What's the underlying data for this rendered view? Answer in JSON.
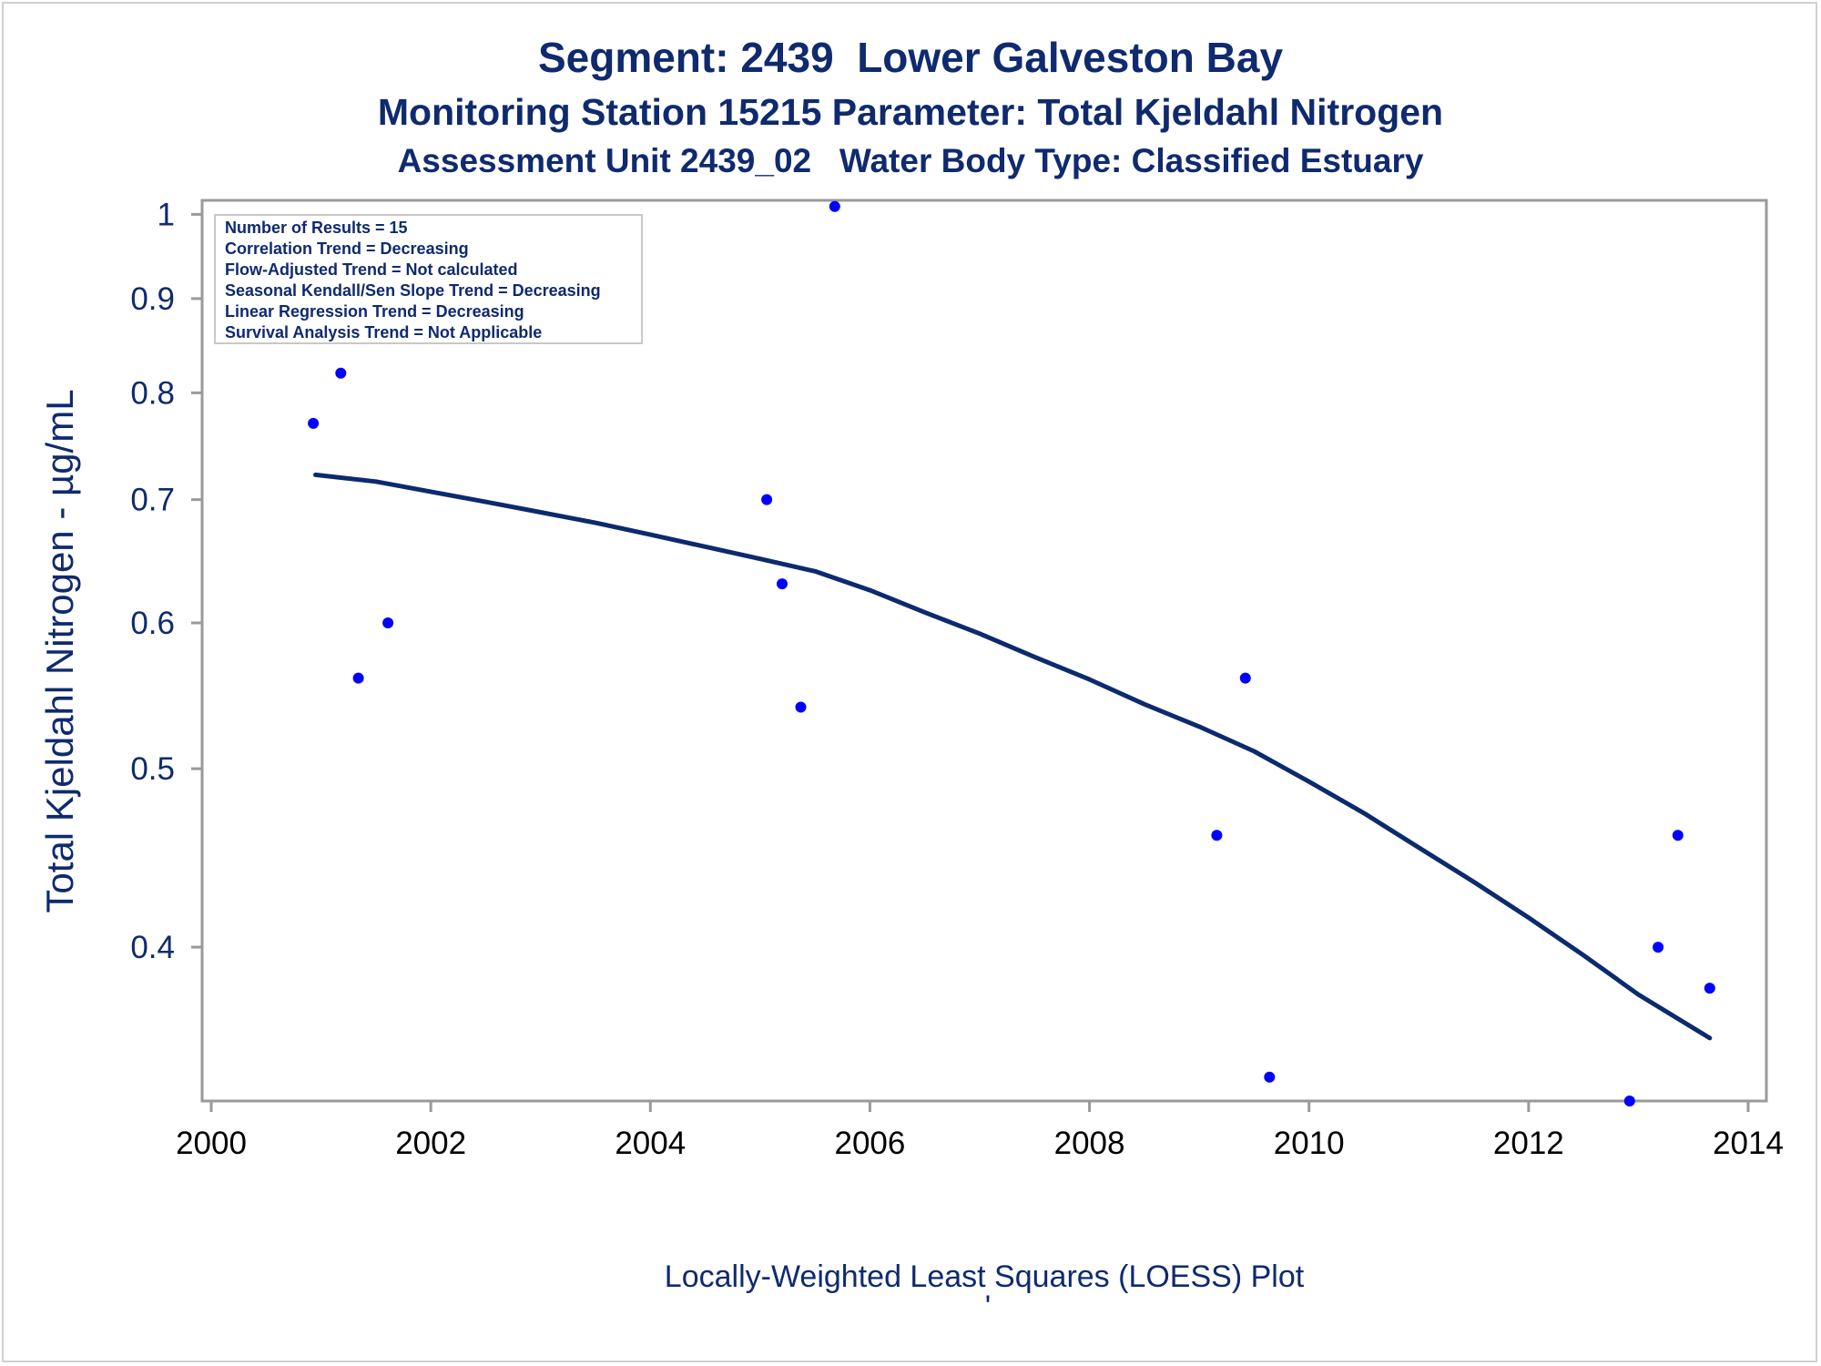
{
  "chart_data": {
    "type": "scatter",
    "title": "Segment: 2439  Lower Galveston Bay",
    "subtitle_lines": [
      "Monitoring Station 15215 Parameter: Total Kjeldahl Nitrogen",
      "Assessment Unit 2439_02   Water Body Type: Classified Estuary"
    ],
    "ylabel": "Total Kjeldahl Nitrogen -  µg/mL",
    "footnote": "Locally-Weighted Least Squares (LOESS) Plot",
    "footnote_mark": "'",
    "y_scale": "log",
    "xlim": [
      2000,
      2014
    ],
    "ylim": [
      0.33,
      1.02
    ],
    "x_ticks": [
      2000,
      2002,
      2004,
      2006,
      2008,
      2010,
      2012,
      2014
    ],
    "y_ticks": [
      0.4,
      0.5,
      0.6,
      0.7,
      0.8,
      0.9,
      1
    ],
    "y_tick_labels": [
      "0.4",
      "0.5",
      "0.6",
      "0.7",
      "0.8",
      "0.9",
      "1"
    ],
    "grid": false,
    "legend_position": "top-left",
    "stats_box": [
      "Number of Results = 15",
      "Correlation Trend = Decreasing",
      "Flow-Adjusted Trend = Not calculated",
      "Seasonal Kendall/Sen Slope Trend = Decreasing",
      "Linear Regression Trend = Decreasing",
      "Survival Analysis Trend = Not Applicable"
    ],
    "points": [
      {
        "x": 2000.93,
        "y": 0.77
      },
      {
        "x": 2001.18,
        "y": 0.82
      },
      {
        "x": 2001.34,
        "y": 0.56
      },
      {
        "x": 2001.61,
        "y": 0.6
      },
      {
        "x": 2005.06,
        "y": 0.7
      },
      {
        "x": 2005.2,
        "y": 0.63
      },
      {
        "x": 2005.37,
        "y": 0.54
      },
      {
        "x": 2005.68,
        "y": 1.01
      },
      {
        "x": 2009.16,
        "y": 0.46
      },
      {
        "x": 2009.42,
        "y": 0.56
      },
      {
        "x": 2009.64,
        "y": 0.34
      },
      {
        "x": 2012.92,
        "y": 0.33
      },
      {
        "x": 2013.18,
        "y": 0.4
      },
      {
        "x": 2013.36,
        "y": 0.46
      },
      {
        "x": 2013.65,
        "y": 0.38
      }
    ],
    "loess_curve": [
      {
        "x": 2000.95,
        "y": 0.722
      },
      {
        "x": 2001.5,
        "y": 0.716
      },
      {
        "x": 2002.0,
        "y": 0.707
      },
      {
        "x": 2002.5,
        "y": 0.698
      },
      {
        "x": 2003.0,
        "y": 0.689
      },
      {
        "x": 2003.5,
        "y": 0.68
      },
      {
        "x": 2004.0,
        "y": 0.67
      },
      {
        "x": 2004.5,
        "y": 0.66
      },
      {
        "x": 2005.0,
        "y": 0.65
      },
      {
        "x": 2005.5,
        "y": 0.64
      },
      {
        "x": 2006.0,
        "y": 0.625
      },
      {
        "x": 2006.5,
        "y": 0.608
      },
      {
        "x": 2007.0,
        "y": 0.592
      },
      {
        "x": 2007.5,
        "y": 0.575
      },
      {
        "x": 2008.0,
        "y": 0.559
      },
      {
        "x": 2008.5,
        "y": 0.542
      },
      {
        "x": 2009.0,
        "y": 0.527
      },
      {
        "x": 2009.5,
        "y": 0.511
      },
      {
        "x": 2010.0,
        "y": 0.492
      },
      {
        "x": 2010.5,
        "y": 0.473
      },
      {
        "x": 2011.0,
        "y": 0.453
      },
      {
        "x": 2011.5,
        "y": 0.434
      },
      {
        "x": 2012.0,
        "y": 0.415
      },
      {
        "x": 2012.5,
        "y": 0.396
      },
      {
        "x": 2013.0,
        "y": 0.377
      },
      {
        "x": 2013.65,
        "y": 0.357
      }
    ],
    "colors": {
      "text": "#0f2a6e",
      "points": "#0000ff",
      "curve": "#0c2a6e",
      "axis": "#9a9a9a"
    }
  }
}
